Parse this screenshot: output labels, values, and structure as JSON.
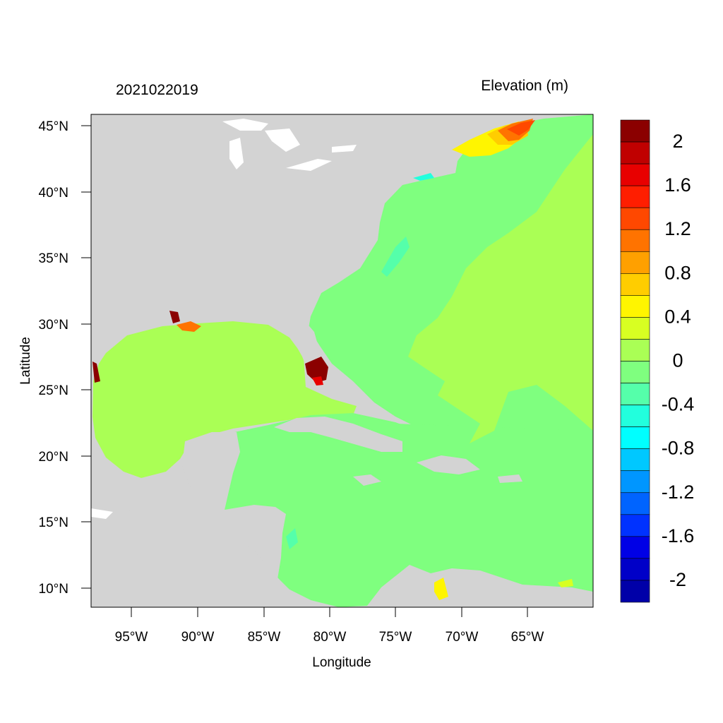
{
  "figure": {
    "left_title": "2021022019",
    "right_title": "Elevation (m)",
    "xlabel": "Longitude",
    "ylabel": "Latitude"
  },
  "axes": {
    "x_ticks": [
      "95°W",
      "90°W",
      "85°W",
      "80°W",
      "75°W",
      "70°W",
      "65°W"
    ],
    "y_ticks": [
      "45°N",
      "40°N",
      "35°N",
      "30°N",
      "25°N",
      "20°N",
      "15°N",
      "10°N"
    ]
  },
  "colorbar": {
    "labels": [
      "2",
      "1.6",
      "1.2",
      "0.8",
      "0.4",
      "0",
      "-0.4",
      "-0.8",
      "-1.2",
      "-1.6",
      "-2"
    ],
    "colors": [
      "#8b0000",
      "#c00000",
      "#e80000",
      "#ff1e00",
      "#ff4800",
      "#ff7300",
      "#ffa000",
      "#ffcd00",
      "#fff500",
      "#d8ff22",
      "#aaff55",
      "#7fff7f",
      "#55ffaa",
      "#22ffdd",
      "#00ffff",
      "#00c8ff",
      "#0096ff",
      "#0064ff",
      "#0032ff",
      "#0000e6",
      "#0000c8",
      "#0000a8"
    ]
  },
  "colors": {
    "land": "#d3d3d3",
    "ocean_open": "#7fff7f",
    "gulf": "#aaff55",
    "water_lakes": "#ffffff",
    "surge_high": "#8b0000"
  }
}
